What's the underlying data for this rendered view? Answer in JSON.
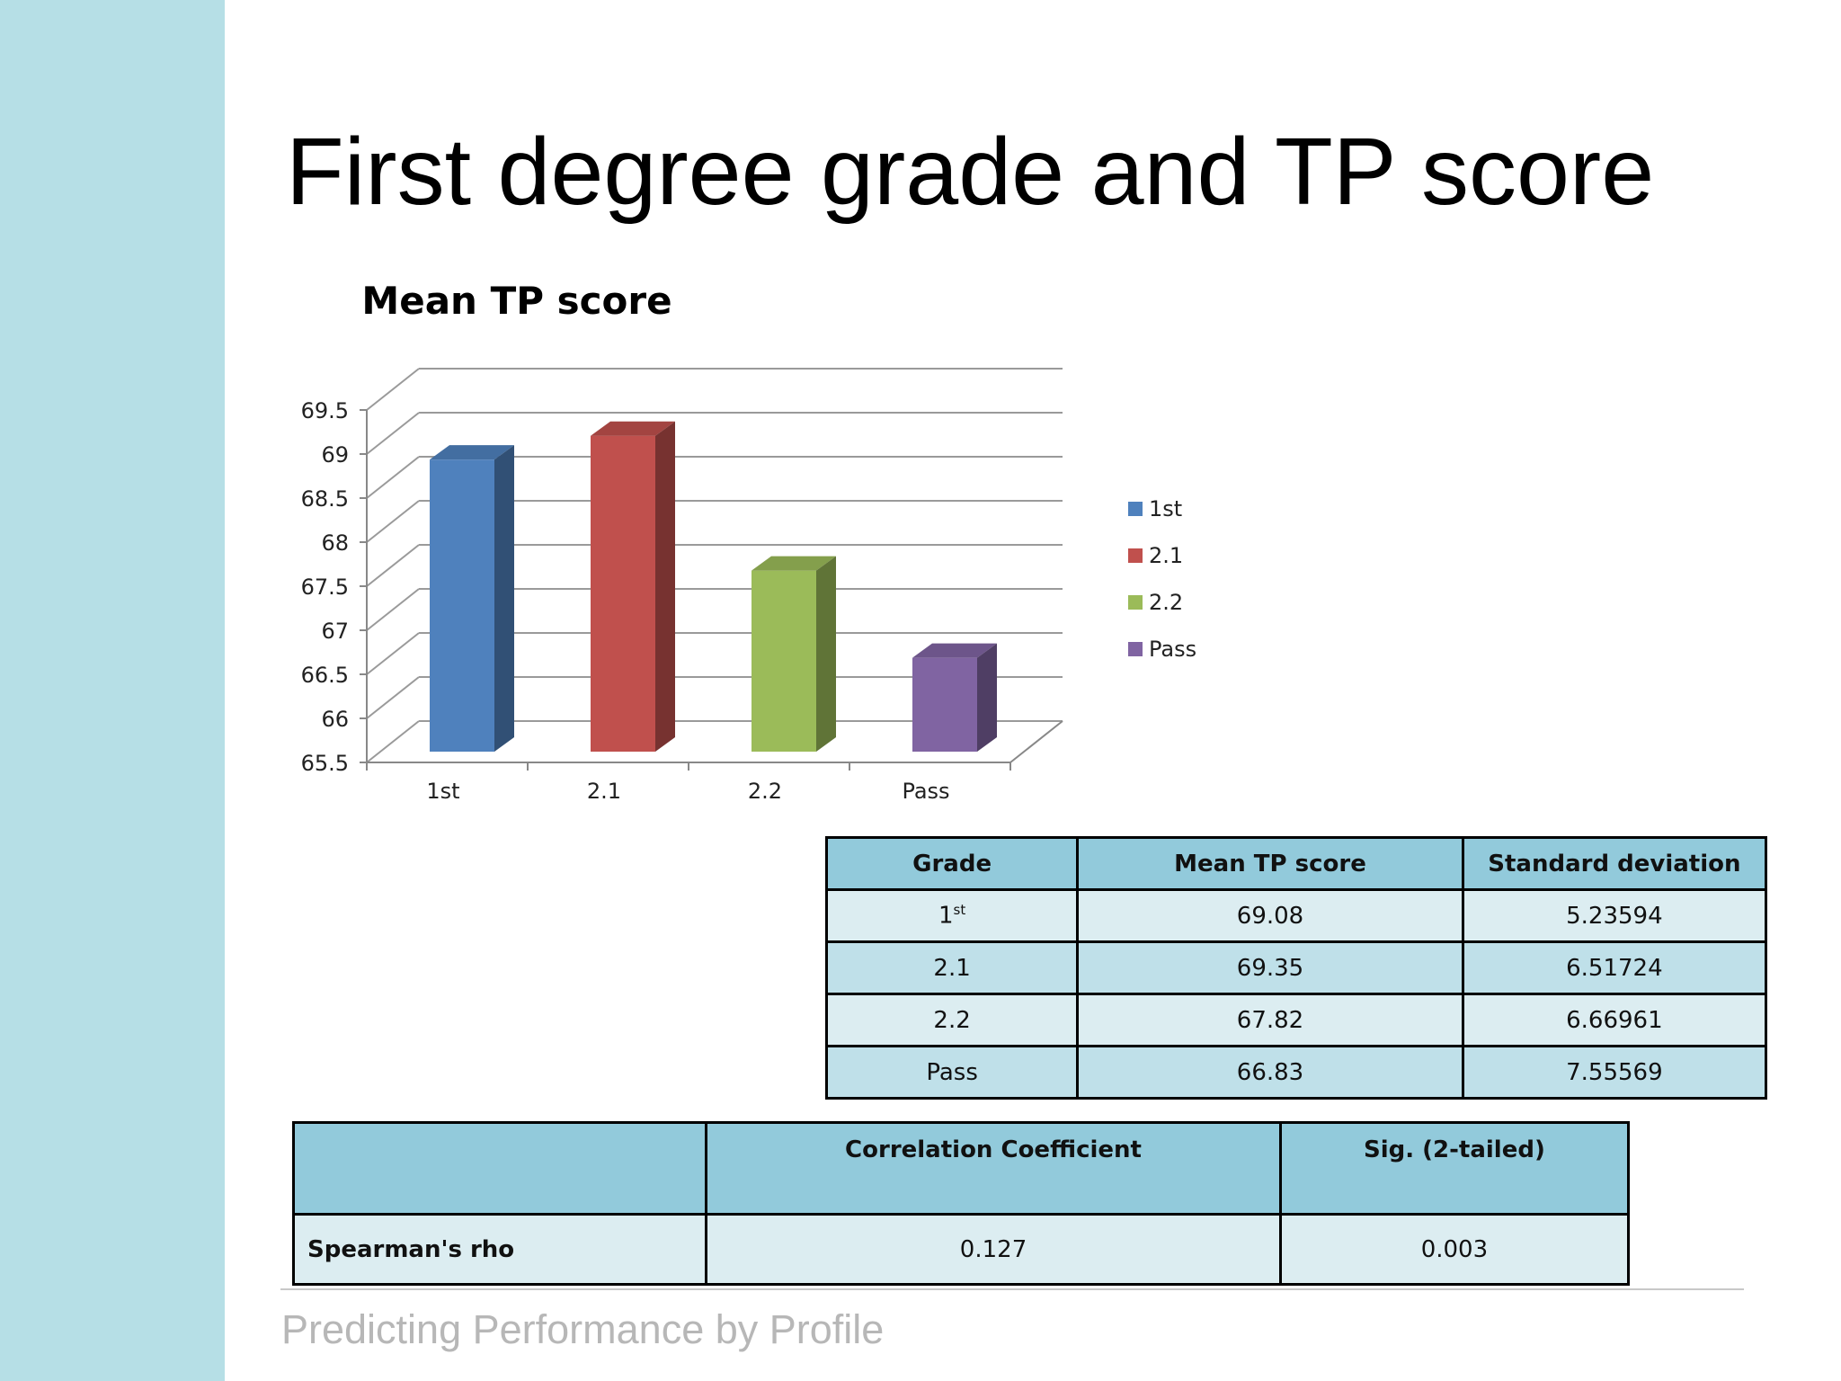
{
  "slide": {
    "title": "First degree grade and TP score",
    "footer": "Predicting Performance by Profile"
  },
  "chart_data": {
    "type": "bar",
    "title": "Mean TP score",
    "categories": [
      "1st",
      "2.1",
      "2.2",
      "Pass"
    ],
    "series": [
      {
        "name": "1st",
        "values": [
          69.08,
          null,
          null,
          null
        ],
        "color": "#4f81bd"
      },
      {
        "name": "2.1",
        "values": [
          null,
          69.35,
          null,
          null
        ],
        "color": "#c0504d"
      },
      {
        "name": "2.2",
        "values": [
          null,
          null,
          67.82,
          null
        ],
        "color": "#9bbb59"
      },
      {
        "name": "Pass",
        "values": [
          null,
          null,
          null,
          66.83
        ],
        "color": "#8064a2"
      }
    ],
    "ylim": [
      65.5,
      69.5
    ],
    "yticks": [
      "65.5",
      "66",
      "66.5",
      "67",
      "67.5",
      "68",
      "68.5",
      "69",
      "69.5"
    ],
    "grid": true,
    "legend": "right",
    "style": "3d-clustered-column"
  },
  "stats_table": {
    "headers": [
      "Grade",
      "Mean TP score",
      "Standard deviation"
    ],
    "rows": [
      {
        "grade": "1",
        "grade_sup": "st",
        "mean": "69.08",
        "sd": "5.23594"
      },
      {
        "grade": "2.1",
        "grade_sup": "",
        "mean": "69.35",
        "sd": "6.51724"
      },
      {
        "grade": "2.2",
        "grade_sup": "",
        "mean": "67.82",
        "sd": "6.66961"
      },
      {
        "grade": "Pass",
        "grade_sup": "",
        "mean": "66.83",
        "sd": "7.55569"
      }
    ]
  },
  "corr_table": {
    "headers": [
      "",
      "Correlation Coefficient",
      "Sig. (2-tailed)"
    ],
    "row_label": "Spearman's rho",
    "coefficient": "0.127",
    "sig": "0.003"
  }
}
